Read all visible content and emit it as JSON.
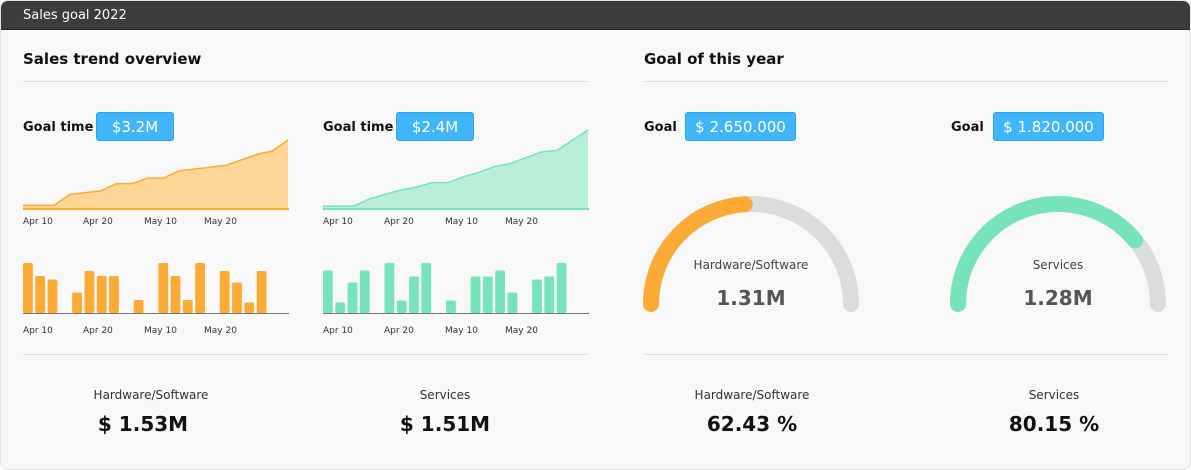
{
  "window": {
    "title": "Sales goal 2022"
  },
  "left": {
    "title": "Sales trend overview",
    "charts": [
      {
        "goal_label": "Goal time",
        "goal_value": "$3.2M",
        "color": "#fbab35",
        "fill": "#fcd597",
        "area": [
          2,
          2,
          2,
          8,
          9,
          10,
          14,
          14,
          17,
          17,
          21,
          22,
          23,
          24,
          27,
          30,
          32,
          38
        ],
        "bars": [
          100,
          74,
          67,
          null,
          41,
          84,
          74,
          74,
          null,
          26,
          null,
          100,
          74,
          26,
          100,
          null,
          84,
          61,
          21,
          84
        ],
        "ticks": [
          "Apr 10",
          "Apr 20",
          "May 10",
          "May 20"
        ]
      },
      {
        "goal_label": "Goal time",
        "goal_value": "$2.4M",
        "color": "#76e4b8",
        "fill": "#b9efd9",
        "area": [
          2,
          2,
          2,
          7,
          10,
          13,
          15,
          18,
          18,
          22,
          25,
          29,
          31,
          35,
          39,
          40,
          47,
          54
        ],
        "bars": [
          85,
          21,
          61,
          85,
          null,
          100,
          25,
          73,
          100,
          null,
          25,
          null,
          73,
          73,
          85,
          41,
          null,
          67,
          73,
          100
        ],
        "ticks": [
          "Apr 10",
          "Apr 20",
          "May 10",
          "May 20"
        ]
      }
    ],
    "stats": [
      {
        "label": "Hardware/Software",
        "value": "$ 1.53M"
      },
      {
        "label": "Services",
        "value": "$ 1.51M"
      }
    ]
  },
  "right": {
    "title": "Goal of this year",
    "gauges": [
      {
        "goal_label": "Goal",
        "goal_value": "$ 2.650.000",
        "name": "Hardware/Software",
        "value": "1.31M",
        "level_percent": 48,
        "color": "#fbab35"
      },
      {
        "goal_label": "Goal",
        "goal_value": "$ 1.820.000",
        "name": "Services",
        "value": "1.28M",
        "level_percent": 78,
        "color": "#76e4b8"
      }
    ],
    "stats": [
      {
        "label": "Hardware/Software",
        "value": "62.43 %"
      },
      {
        "label": "Services",
        "value": "80.15 %"
      }
    ]
  },
  "track_color": "#dcdcdc"
}
